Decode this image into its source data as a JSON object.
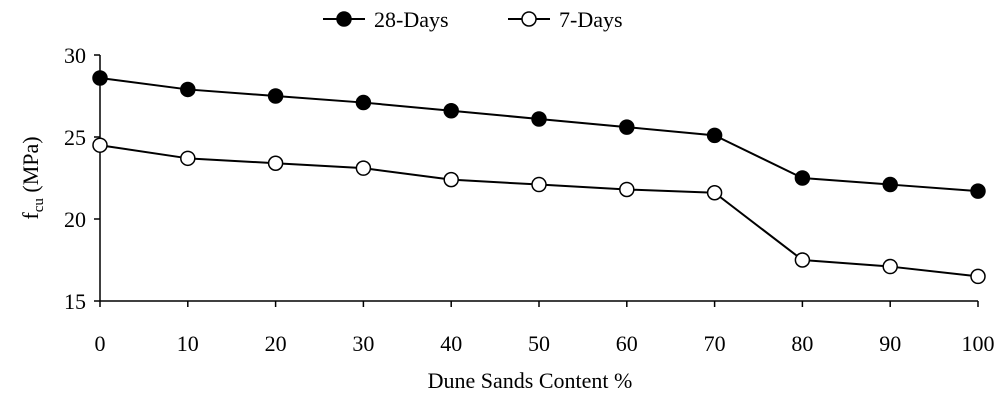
{
  "chart_data": {
    "type": "line",
    "title": "",
    "xlabel": "Dune Sands Content %",
    "ylabel_main": "f",
    "ylabel_sub": "cu",
    "ylabel_unit": " (MPa)",
    "x": [
      0,
      10,
      20,
      30,
      40,
      50,
      60,
      70,
      80,
      90,
      100
    ],
    "xlim": [
      0,
      100
    ],
    "ylim": [
      15,
      30
    ],
    "xticks": [
      "0",
      "10",
      "20",
      "30",
      "40",
      "50",
      "60",
      "70",
      "80",
      "90",
      "100"
    ],
    "yticks": [
      "15",
      "20",
      "25",
      "30"
    ],
    "grid": false,
    "legend_position": "top-center",
    "series": [
      {
        "name": "28-Days",
        "marker": "filled-circle",
        "color": "#000000",
        "values": [
          28.6,
          27.9,
          27.5,
          27.1,
          26.6,
          26.1,
          25.6,
          25.1,
          22.5,
          22.1,
          21.7
        ]
      },
      {
        "name": "7-Days",
        "marker": "open-circle",
        "color": "#000000",
        "values": [
          24.5,
          23.7,
          23.4,
          23.1,
          22.4,
          22.1,
          21.8,
          21.6,
          17.5,
          17.1,
          16.5
        ]
      }
    ]
  }
}
